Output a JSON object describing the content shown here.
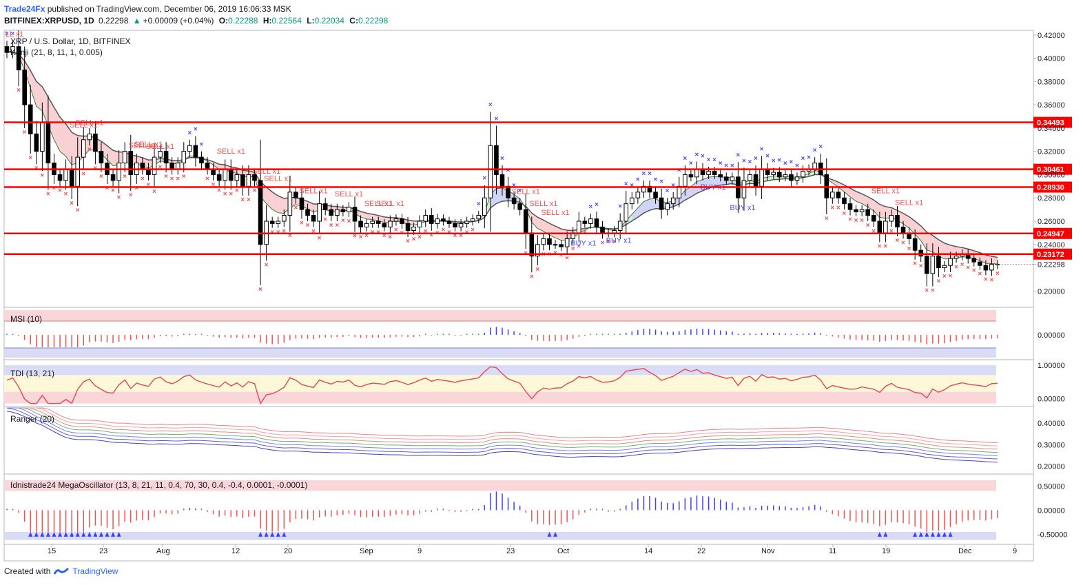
{
  "header": {
    "author": "Trade24Fx",
    "published": "published on TradingView.com, December 06, 2019 16:06:33 MSK",
    "symbol": "BITFINEX:XRPUSD, 1D",
    "price": "0.22298",
    "change": "+0.00009 (+0.04%)",
    "o_label": "O:",
    "o": "0.22288",
    "h_label": "H:",
    "h": "0.22564",
    "l_label": "L:",
    "l": "0.22034",
    "c_label": "C:",
    "c": "0.22298"
  },
  "legend": {
    "title": "XRP / U.S. Dollar, 1D, BITFINEX",
    "kenji": "Kenji (21, 8, 11, 1, 0.005)"
  },
  "footer": {
    "created": "Created with",
    "brand": "TradingView"
  },
  "colors": {
    "red_line": "#ff0000",
    "sell": "#ef5350",
    "buy": "#4a4aff",
    "cloud_red": "#f8c8cc",
    "cloud_green": "#c8f0c8",
    "cloud_blue": "#c8ccf4"
  },
  "chart_data": [
    {
      "type": "candlestick",
      "title": "XRP / U.S. Dollar, 1D, BITFINEX",
      "ylim": [
        0.186,
        0.424
      ],
      "y_ticks": [
        "0.42000",
        "0.40000",
        "0.38000",
        "0.36000",
        "0.34000",
        "0.32000",
        "0.30000",
        "0.28000",
        "0.26000",
        "0.24000",
        "0.22298",
        "0.20000"
      ],
      "x_ticks": [
        "15",
        "23",
        "Aug",
        "12",
        "20",
        "Sep",
        "9",
        "23",
        "Oct",
        "14",
        "22",
        "Nov",
        "11",
        "19",
        "Dec",
        "9"
      ],
      "horizontal_levels": [
        "0.34493",
        "0.30461",
        "0.28930",
        "0.24947",
        "0.23172"
      ],
      "last_price": "0.22298",
      "ohlc_close_path": [
        0.405,
        0.41,
        0.39,
        0.36,
        0.335,
        0.32,
        0.345,
        0.31,
        0.3,
        0.295,
        0.305,
        0.29,
        0.315,
        0.33,
        0.335,
        0.32,
        0.31,
        0.3,
        0.295,
        0.31,
        0.32,
        0.3,
        0.31,
        0.305,
        0.3,
        0.315,
        0.32,
        0.31,
        0.305,
        0.31,
        0.32,
        0.325,
        0.315,
        0.31,
        0.305,
        0.3,
        0.295,
        0.305,
        0.295,
        0.3,
        0.29,
        0.3,
        0.295,
        0.24,
        0.26,
        0.258,
        0.26,
        0.265,
        0.285,
        0.28,
        0.27,
        0.265,
        0.26,
        0.275,
        0.27,
        0.265,
        0.27,
        0.268,
        0.272,
        0.26,
        0.255,
        0.258,
        0.26,
        0.258,
        0.255,
        0.26,
        0.262,
        0.258,
        0.252,
        0.255,
        0.26,
        0.265,
        0.258,
        0.262,
        0.26,
        0.258,
        0.255,
        0.258,
        0.26,
        0.262,
        0.265,
        0.28,
        0.325,
        0.3,
        0.29,
        0.28,
        0.275,
        0.27,
        0.25,
        0.23,
        0.24,
        0.245,
        0.24,
        0.24,
        0.238,
        0.245,
        0.25,
        0.26,
        0.258,
        0.262,
        0.255,
        0.25,
        0.25,
        0.252,
        0.26,
        0.275,
        0.28,
        0.285,
        0.29,
        0.285,
        0.28,
        0.27,
        0.275,
        0.28,
        0.29,
        0.3,
        0.298,
        0.305,
        0.3,
        0.303,
        0.3,
        0.298,
        0.295,
        0.298,
        0.28,
        0.295,
        0.3,
        0.29,
        0.305,
        0.3,
        0.302,
        0.298,
        0.3,
        0.295,
        0.298,
        0.303,
        0.305,
        0.31,
        0.3,
        0.28,
        0.285,
        0.28,
        0.275,
        0.27,
        0.268,
        0.27,
        0.265,
        0.26,
        0.25,
        0.26,
        0.265,
        0.255,
        0.25,
        0.245,
        0.235,
        0.23,
        0.215,
        0.23,
        0.22,
        0.222,
        0.228,
        0.23,
        0.232,
        0.228,
        0.225,
        0.222,
        0.218,
        0.223,
        0.2225
      ]
    },
    {
      "type": "bar",
      "title": "MSI (10)",
      "ylim": [
        -0.06,
        0.06
      ],
      "y_ticks": [
        "0.00000"
      ]
    },
    {
      "type": "line",
      "title": "TDI (13, 21)",
      "ylim": [
        -0.2,
        1.1
      ],
      "y_ticks": [
        "1.00000",
        "0.00000"
      ]
    },
    {
      "type": "line",
      "title": "Ranger (20)",
      "ylim": [
        0.17,
        0.47
      ],
      "y_ticks": [
        "0.40000",
        "0.30000",
        "0.20000"
      ]
    },
    {
      "type": "bar",
      "title": "Idnistrade24 MegaOscillator (13, 8, 21, 11, 0.4, 70, 30, 0.4, -0.4, 0.0001, -0.0001)",
      "ylim": [
        -0.68,
        0.72
      ],
      "y_ticks": [
        "0.50000",
        "0.00000",
        "-0.50000"
      ]
    }
  ],
  "signals": {
    "sell_label": "SELL x1",
    "buy_label": "BUY x1",
    "top_left_sell": "LL x1"
  }
}
